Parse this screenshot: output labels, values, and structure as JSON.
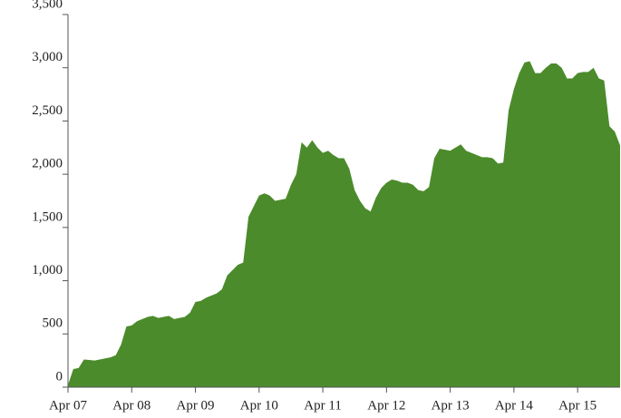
{
  "chart_data": {
    "type": "area",
    "color": "#4b8b2b",
    "categories": [
      "Apr 07",
      null,
      null,
      null,
      null,
      null,
      null,
      null,
      null,
      null,
      null,
      null,
      "Apr 08",
      null,
      null,
      null,
      null,
      null,
      null,
      null,
      null,
      null,
      null,
      null,
      "Apr 09",
      null,
      null,
      null,
      null,
      null,
      null,
      null,
      null,
      null,
      null,
      null,
      "Apr 10",
      null,
      null,
      null,
      null,
      null,
      null,
      null,
      null,
      null,
      null,
      null,
      "Apr 11",
      null,
      null,
      null,
      null,
      null,
      null,
      null,
      null,
      null,
      null,
      null,
      "Apr 12",
      null,
      null,
      null,
      null,
      null,
      null,
      null,
      null,
      null,
      null,
      null,
      "Apr 13",
      null,
      null,
      null,
      null,
      null,
      null,
      null,
      null,
      null,
      null,
      null,
      "Apr 14",
      null,
      null,
      null,
      null,
      null,
      null,
      null,
      null,
      null,
      null,
      null,
      "Apr 15",
      null,
      null,
      null,
      null,
      null,
      null,
      null,
      null
    ],
    "values": [
      20,
      170,
      180,
      260,
      255,
      250,
      260,
      270,
      280,
      300,
      400,
      570,
      580,
      620,
      640,
      660,
      670,
      650,
      660,
      670,
      640,
      650,
      660,
      700,
      800,
      810,
      840,
      860,
      880,
      920,
      1050,
      1100,
      1150,
      1170,
      1600,
      1700,
      1800,
      1820,
      1800,
      1750,
      1760,
      1770,
      1900,
      2000,
      2300,
      2250,
      2320,
      2250,
      2200,
      2220,
      2180,
      2150,
      2150,
      2050,
      1850,
      1750,
      1680,
      1650,
      1780,
      1870,
      1920,
      1950,
      1940,
      1920,
      1920,
      1900,
      1850,
      1840,
      1880,
      2150,
      2240,
      2230,
      2220,
      2250,
      2280,
      2220,
      2200,
      2180,
      2160,
      2160,
      2150,
      2100,
      2110,
      2600,
      2800,
      2950,
      3050,
      3060,
      2950,
      2950,
      3000,
      3040,
      3040,
      3000,
      2900,
      2900,
      2950,
      2960,
      2960,
      3000,
      2900,
      2880,
      2450,
      2400,
      2270
    ],
    "ylim": [
      0,
      3500
    ],
    "yticks": [
      0,
      500,
      {
        "value": 1000,
        "label": "1,000"
      },
      {
        "value": 1500,
        "label": "1,500"
      },
      {
        "value": 2000,
        "label": "2,000"
      },
      {
        "value": 2500,
        "label": "2,500"
      },
      {
        "value": 3000,
        "label": "3,000"
      },
      {
        "value": 3500,
        "label": "3,500"
      }
    ]
  }
}
